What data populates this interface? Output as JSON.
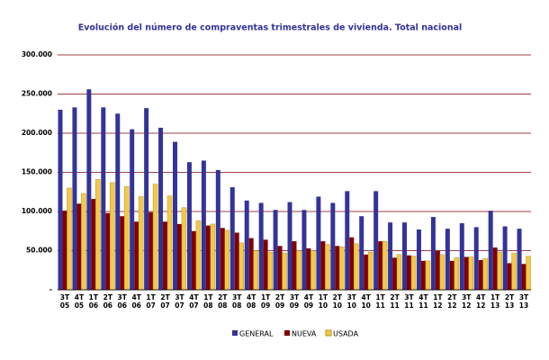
{
  "chart_data": {
    "type": "bar",
    "title": "Evolución del número de compraventas trimestrales de vivienda. Total nacional",
    "categories": [
      "3T 05",
      "4T 05",
      "1T 06",
      "2T 06",
      "3T 06",
      "4T 06",
      "1T 07",
      "2T 07",
      "3T 07",
      "4T 07",
      "1T 08",
      "2T 08",
      "3T 08",
      "4T 08",
      "1T 09",
      "2T 09",
      "3T 09",
      "4T 09",
      "1T 10",
      "2T 10",
      "3T 10",
      "4T 10",
      "1T 11",
      "2T 11",
      "3T 11",
      "4T 11",
      "1T 12",
      "2T 12",
      "3T 12",
      "4T 12",
      "1T 13",
      "2T 13",
      "3T 13"
    ],
    "series": [
      {
        "name": "GENERAL",
        "color": "#333399",
        "values": [
          230000,
          233000,
          256000,
          233000,
          225000,
          205000,
          232000,
          207000,
          189000,
          163000,
          165000,
          153000,
          131000,
          114000,
          111000,
          102000,
          112000,
          102000,
          119000,
          111000,
          126000,
          94000,
          126000,
          86000,
          86000,
          77000,
          93000,
          78000,
          85000,
          80000,
          101000,
          81000,
          78000
        ]
      },
      {
        "name": "NUEVA",
        "color": "#800000",
        "values": [
          101000,
          110000,
          116000,
          98000,
          94000,
          87000,
          99000,
          87000,
          84000,
          75000,
          82000,
          79000,
          73000,
          66000,
          64000,
          56000,
          62000,
          53000,
          62000,
          56000,
          67000,
          45000,
          62000,
          41000,
          44000,
          37000,
          50000,
          37000,
          42000,
          38000,
          54000,
          34000,
          33000
        ]
      },
      {
        "name": "USADA",
        "color": "#f2c94c",
        "values": [
          130000,
          123000,
          141000,
          137000,
          132000,
          119000,
          135000,
          120000,
          105000,
          88000,
          84000,
          76000,
          60000,
          50000,
          48000,
          47000,
          50000,
          50000,
          58000,
          55000,
          59000,
          48000,
          62000,
          45000,
          43000,
          37000,
          45000,
          41000,
          42000,
          40000,
          48000,
          47000,
          43000
        ]
      }
    ],
    "ylim": [
      0,
      300000
    ],
    "yticks": [
      {
        "value": 0,
        "label": "-"
      },
      {
        "value": 50000,
        "label": "50.000"
      },
      {
        "value": 100000,
        "label": "100.000"
      },
      {
        "value": 150000,
        "label": "150.000"
      },
      {
        "value": 200000,
        "label": "200.000"
      },
      {
        "value": 250000,
        "label": "250.000"
      },
      {
        "value": 300000,
        "label": "300.000"
      }
    ],
    "grid": true
  }
}
